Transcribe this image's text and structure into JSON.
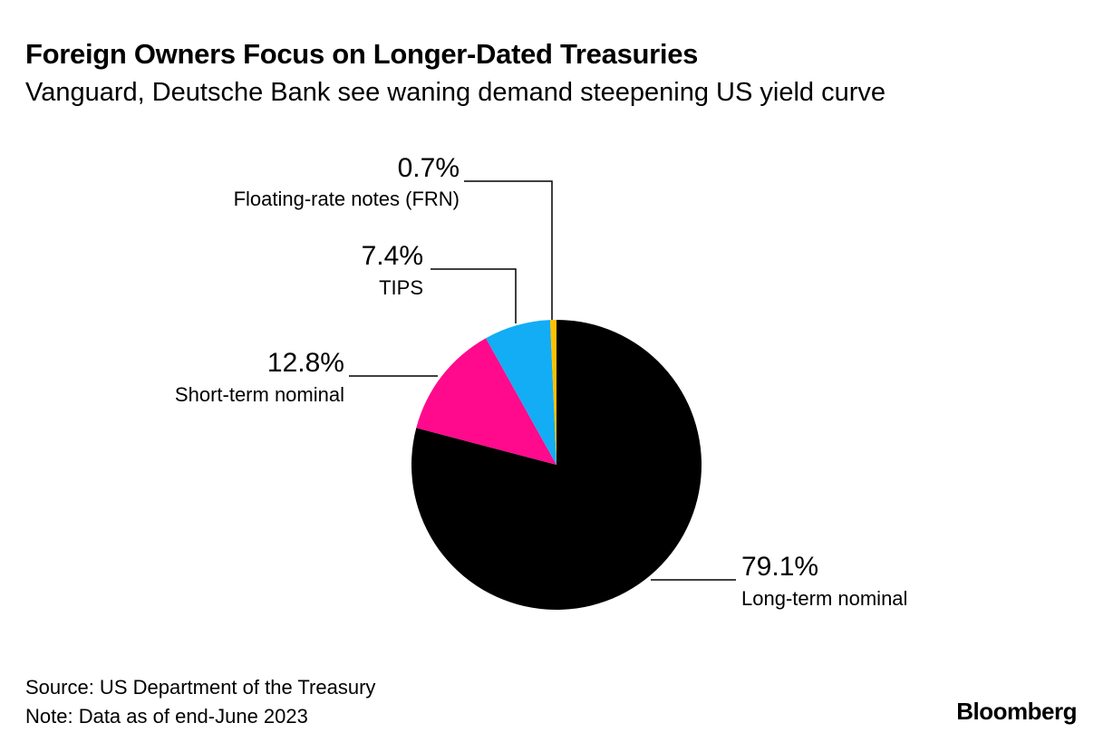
{
  "title": "Foreign Owners Focus on Longer-Dated Treasuries",
  "subtitle": "Vanguard, Deutsche Bank see waning demand steepening US yield curve",
  "source": "Source: US Department of the Treasury",
  "note": "Note: Data as of end-June 2023",
  "logo": "Bloomberg",
  "chart_data": {
    "type": "pie",
    "start": "12 o'clock, clockwise",
    "slices": [
      {
        "name": "Long-term nominal",
        "value": 79.1,
        "label": "79.1%",
        "color": "#000000"
      },
      {
        "name": "Short-term nominal",
        "value": 12.8,
        "label": "12.8%",
        "color": "#ff0a8c"
      },
      {
        "name": "TIPS",
        "value": 7.4,
        "label": "7.4%",
        "color": "#12adf5"
      },
      {
        "name": "Floating-rate notes (FRN)",
        "value": 0.7,
        "label": "0.7%",
        "color": "#ffc000"
      }
    ]
  }
}
